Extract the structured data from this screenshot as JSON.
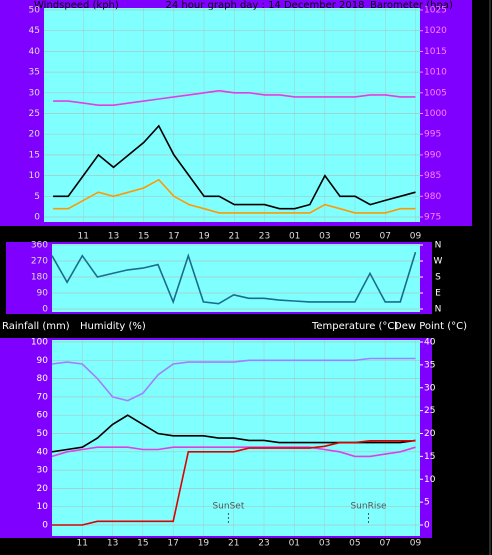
{
  "chart_data": [
    {
      "type": "line",
      "title": "24 hour graph day : 14 December 2018",
      "ylabel": "Windspeed (kph)",
      "y2label": "Barometer (hpa)",
      "x": [
        0,
        1,
        2,
        3,
        4,
        5,
        6,
        7,
        8,
        9,
        10,
        11,
        12,
        13,
        14,
        15,
        16,
        17,
        18,
        19,
        20,
        21,
        22,
        23,
        24
      ],
      "xlim": [
        -0.6,
        24.3
      ],
      "xticks": [
        {
          "value": 2,
          "label": "11"
        },
        {
          "value": 4,
          "label": "13"
        },
        {
          "value": 6,
          "label": "15"
        },
        {
          "value": 8,
          "label": "17"
        },
        {
          "value": 10,
          "label": "19"
        },
        {
          "value": 12,
          "label": "21"
        },
        {
          "value": 14,
          "label": "23"
        },
        {
          "value": 16,
          "label": "01"
        },
        {
          "value": 18,
          "label": "03"
        },
        {
          "value": 20,
          "label": "05"
        },
        {
          "value": 22,
          "label": "07"
        },
        {
          "value": 24,
          "label": "09"
        }
      ],
      "ylim": [
        0,
        50
      ],
      "yticks": [
        0,
        5,
        10,
        15,
        20,
        25,
        30,
        35,
        40,
        45,
        50
      ],
      "y2lim": [
        975,
        1025
      ],
      "y2ticks": [
        975,
        980,
        985,
        990,
        995,
        1000,
        1005,
        1010,
        1015,
        1020,
        1025
      ],
      "grid": true,
      "series": [
        {
          "color": "#000000",
          "values": [
            5,
            5,
            10,
            15,
            12,
            15,
            18,
            22,
            15,
            10,
            5,
            5,
            3,
            3,
            3,
            2,
            2,
            3,
            10,
            5,
            5,
            3,
            4,
            5,
            6
          ]
        },
        {
          "color": "#ff9900",
          "values": [
            2,
            2,
            4,
            6,
            5,
            6,
            7,
            9,
            5,
            3,
            2,
            1,
            1,
            1,
            1,
            1,
            1,
            1,
            3,
            2,
            1,
            1,
            1,
            2,
            2
          ]
        },
        {
          "color": "#e040e0",
          "axis": "y2",
          "values": [
            1003,
            1003,
            1002.5,
            1002,
            1002,
            1002.5,
            1003,
            1003.5,
            1004,
            1004.5,
            1005,
            1005.5,
            1005,
            1005,
            1004.5,
            1004.5,
            1004,
            1004,
            1004,
            1004,
            1004,
            1004.5,
            1004.5,
            1004,
            1004
          ]
        }
      ]
    },
    {
      "type": "line",
      "x": [
        0,
        1,
        2,
        3,
        4,
        5,
        6,
        7,
        8,
        9,
        10,
        11,
        12,
        13,
        14,
        15,
        16,
        17,
        18,
        19,
        20,
        21,
        22,
        23,
        24
      ],
      "xlim": [
        0,
        24.3
      ],
      "ylim": [
        0,
        360
      ],
      "yticks": [
        0,
        90,
        180,
        270,
        360
      ],
      "y2lim": [
        0,
        360
      ],
      "y2ticks": [
        {
          "value": 360,
          "label": "N"
        },
        {
          "value": 270,
          "label": "W"
        },
        {
          "value": 180,
          "label": "S"
        },
        {
          "value": 90,
          "label": "E"
        },
        {
          "value": 0,
          "label": "N"
        }
      ],
      "grid": true,
      "series": [
        {
          "color": "#1a6e8c",
          "values": [
            300,
            150,
            300,
            180,
            200,
            220,
            230,
            250,
            40,
            300,
            40,
            30,
            80,
            60,
            60,
            50,
            45,
            40,
            40,
            40,
            40,
            200,
            40,
            40,
            320
          ]
        }
      ]
    },
    {
      "type": "line",
      "y_labels": [
        "Rainfall (mm)",
        "Humidity (%)"
      ],
      "y2_labels": [
        "Temperature (°C)",
        "Dew Point (°C)"
      ],
      "x": [
        0,
        1,
        2,
        3,
        4,
        5,
        6,
        7,
        8,
        9,
        10,
        11,
        12,
        13,
        14,
        15,
        16,
        17,
        18,
        19,
        20,
        21,
        22,
        23,
        24
      ],
      "xlim": [
        0,
        24.3
      ],
      "xticks": [
        {
          "value": 2,
          "label": "11"
        },
        {
          "value": 4,
          "label": "13"
        },
        {
          "value": 6,
          "label": "15"
        },
        {
          "value": 8,
          "label": "17"
        },
        {
          "value": 10,
          "label": "19"
        },
        {
          "value": 12,
          "label": "21"
        },
        {
          "value": 14,
          "label": "23"
        },
        {
          "value": 16,
          "label": "01"
        },
        {
          "value": 18,
          "label": "03"
        },
        {
          "value": 20,
          "label": "05"
        },
        {
          "value": 22,
          "label": "07"
        },
        {
          "value": 24,
          "label": "09"
        }
      ],
      "ylim": [
        0,
        100
      ],
      "yticks": [
        0,
        10,
        20,
        30,
        40,
        50,
        60,
        70,
        80,
        90,
        100
      ],
      "y2lim": [
        0,
        40
      ],
      "y2ticks": [
        0,
        5,
        10,
        15,
        20,
        25,
        30,
        35,
        40
      ],
      "y3lim": [
        0,
        10
      ],
      "grid": true,
      "annotations": [
        {
          "text": "SunSet",
          "x": 11.65
        },
        {
          "text": "SunRise",
          "x": 20.9
        }
      ],
      "series": [
        {
          "color": "#000000",
          "axis": "y2",
          "values": [
            16,
            16.5,
            17,
            19,
            22,
            24,
            22,
            20,
            19.5,
            19.5,
            19.5,
            19,
            19,
            18.5,
            18.5,
            18,
            18,
            18,
            18,
            18,
            18,
            18,
            18,
            18,
            18.5
          ]
        },
        {
          "color": "#e040e0",
          "axis": "y2",
          "values": [
            15,
            16,
            16.5,
            17,
            17,
            17,
            16.5,
            16.5,
            17,
            17,
            17,
            17,
            17,
            17,
            17,
            17,
            17,
            17,
            16.5,
            16,
            15,
            15,
            15.5,
            16,
            17
          ]
        },
        {
          "color": "#a080ff",
          "values": [
            88,
            89,
            88,
            80,
            70,
            68,
            72,
            82,
            88,
            89,
            89,
            89,
            89,
            90,
            90,
            90,
            90,
            90,
            90,
            90,
            90,
            91,
            91,
            91,
            91
          ]
        },
        {
          "color": "#e00000",
          "axis": "y3",
          "values": [
            0,
            0,
            0,
            0.2,
            0.2,
            0.2,
            0.2,
            0.2,
            0.2,
            4.0,
            4.0,
            4.0,
            4.0,
            4.2,
            4.2,
            4.2,
            4.2,
            4.2,
            4.3,
            4.5,
            4.5,
            4.6,
            4.6,
            4.6,
            4.6
          ]
        }
      ]
    }
  ]
}
